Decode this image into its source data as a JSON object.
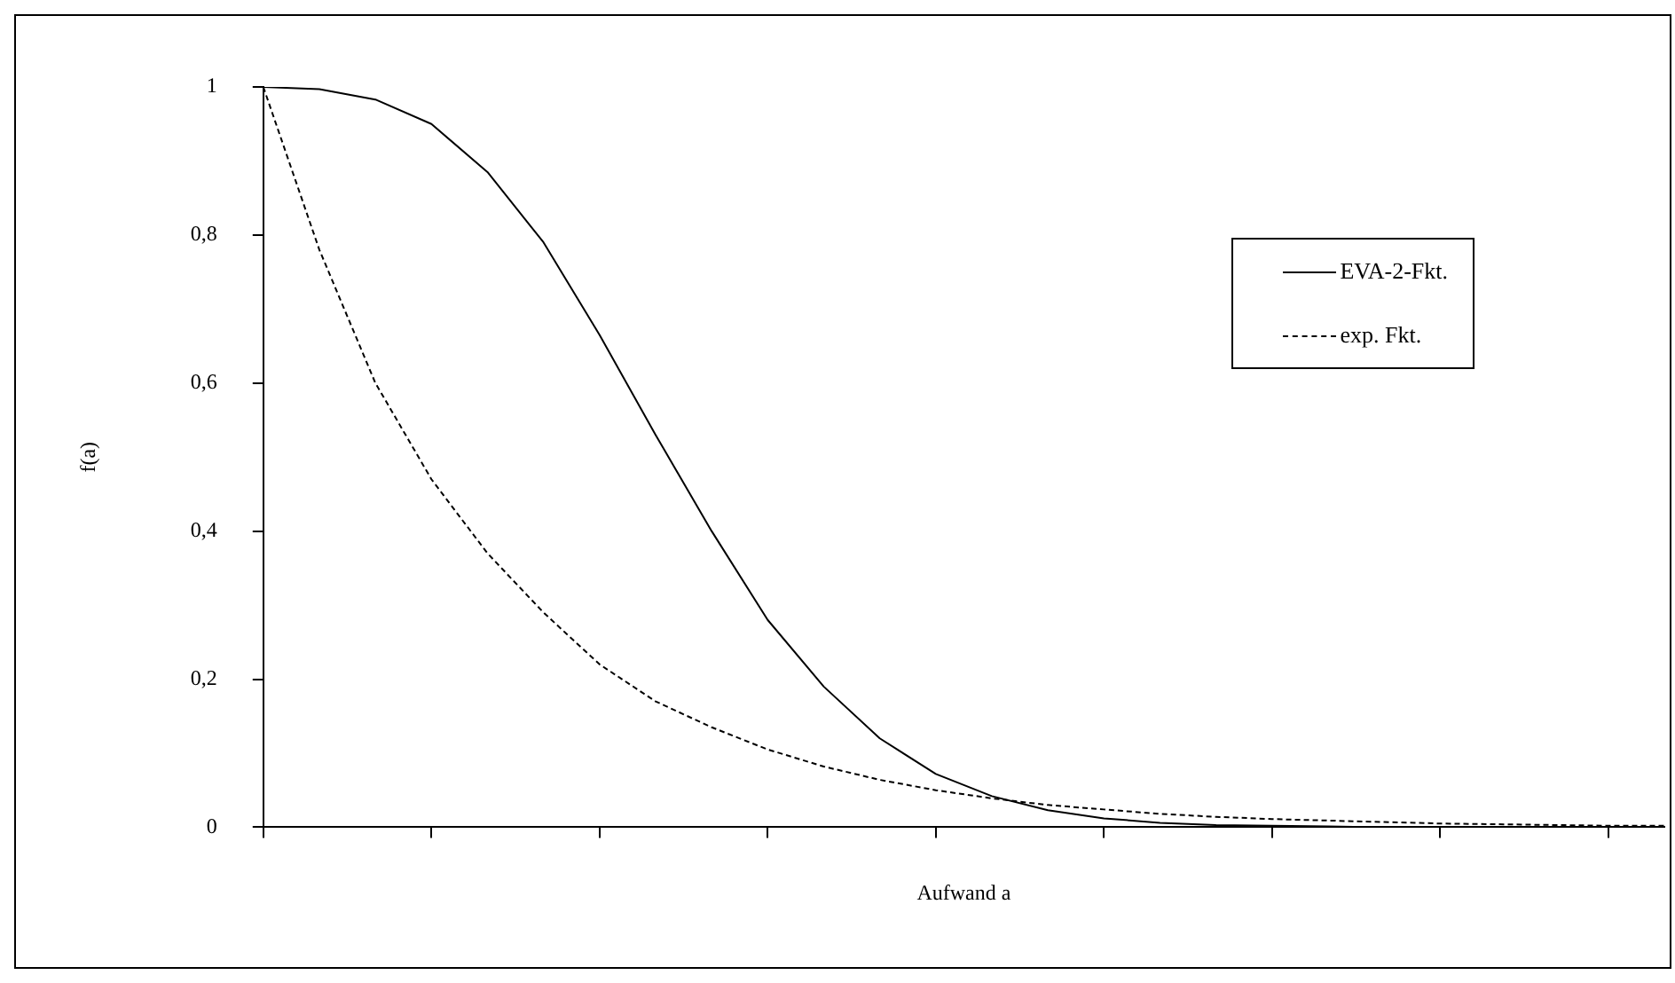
{
  "chart_data": {
    "type": "line",
    "xlabel": "Aufwand a",
    "ylabel": "f(a)",
    "categories": [
      null,
      null,
      null,
      null,
      null,
      null,
      null,
      null,
      null,
      null,
      null,
      null,
      null,
      null,
      null,
      null,
      null,
      null,
      null,
      null,
      null,
      null,
      null,
      null,
      null,
      null
    ],
    "ylim": [
      0,
      1
    ],
    "yticks": [
      {
        "value": 0,
        "label": "0"
      },
      {
        "value": 0.2,
        "label": "0,2"
      },
      {
        "value": 0.4,
        "label": "0,4"
      },
      {
        "value": 0.6,
        "label": "0,6"
      },
      {
        "value": 0.8,
        "label": "0,8"
      },
      {
        "value": 1,
        "label": "1"
      }
    ],
    "grid": false,
    "legend": "top right",
    "marker": "none",
    "series": [
      {
        "name": "EVA-2-Fkt.",
        "color": "#000000",
        "line_style": "solid",
        "values": [
          1,
          0.997,
          0.983,
          0.95,
          0.885,
          0.79,
          0.665,
          0.53,
          0.4,
          0.28,
          0.19,
          0.12,
          0.072,
          0.042,
          0.023,
          0.012,
          0.006,
          0.003,
          0.002,
          0.001,
          0,
          0,
          0,
          0,
          0,
          0
        ]
      },
      {
        "name": "exp. Fkt.",
        "color": "#000000",
        "line_style": "dashed",
        "values": [
          1,
          0.78,
          0.6,
          0.47,
          0.37,
          0.29,
          0.22,
          0.17,
          0.135,
          0.105,
          0.082,
          0.064,
          0.05,
          0.039,
          0.03,
          0.024,
          0.018,
          0.014,
          0.011,
          0.009,
          0.007,
          0.005,
          0.004,
          0.003,
          0.002,
          0.002
        ]
      }
    ]
  }
}
